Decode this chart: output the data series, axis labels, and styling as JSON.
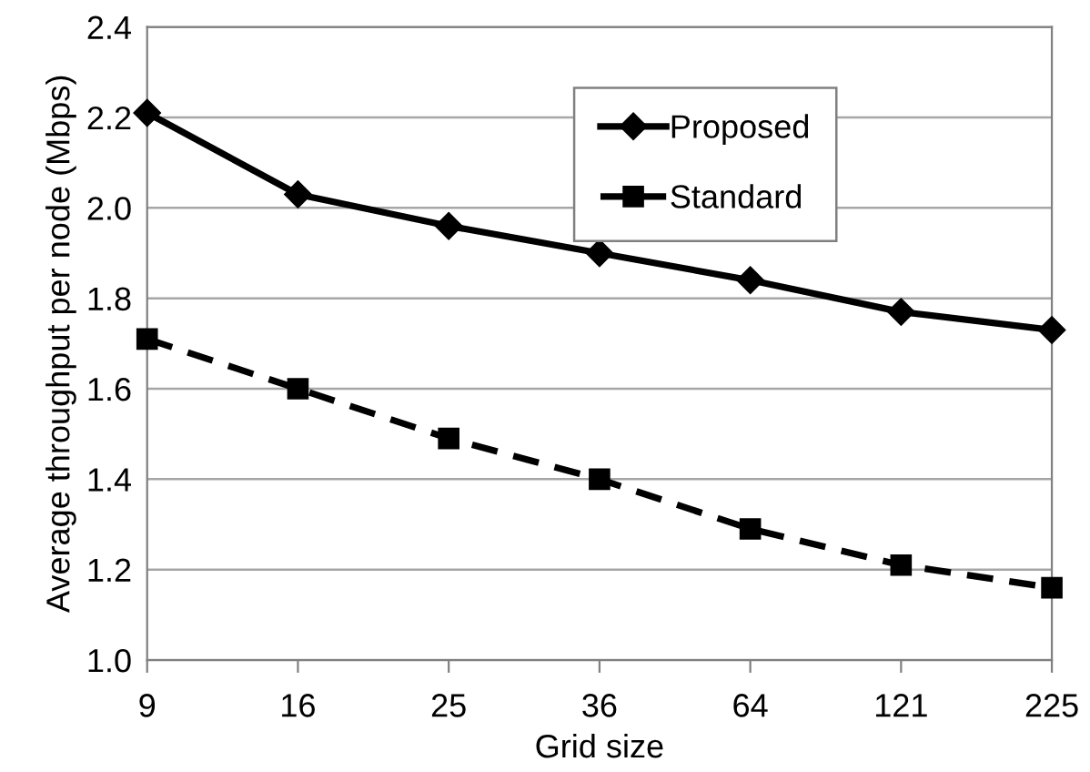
{
  "chart_data": {
    "type": "line",
    "xlabel": "Grid size",
    "ylabel": "Average throughput per node (Mbps)",
    "categories": [
      "9",
      "16",
      "25",
      "36",
      "64",
      "121",
      "225"
    ],
    "series": [
      {
        "name": "Proposed",
        "color": "#000000",
        "marker": "diamond",
        "line_style": "solid",
        "values": [
          2.21,
          2.03,
          1.96,
          1.9,
          1.84,
          1.77,
          1.73
        ]
      },
      {
        "name": "Standard",
        "color": "#000000",
        "marker": "square",
        "line_style": "dashed",
        "values": [
          1.71,
          1.6,
          1.49,
          1.4,
          1.29,
          1.21,
          1.16
        ]
      }
    ],
    "ylim": [
      1.0,
      2.4
    ],
    "yticks": [
      {
        "value": 1.0,
        "label": "1.0"
      },
      {
        "value": 1.2,
        "label": "1.2"
      },
      {
        "value": 1.4,
        "label": "1.4"
      },
      {
        "value": 1.6,
        "label": "1.6"
      },
      {
        "value": 1.8,
        "label": "1.8"
      },
      {
        "value": 2.0,
        "label": "2.0"
      },
      {
        "value": 2.2,
        "label": "2.2"
      },
      {
        "value": 2.4,
        "label": "2.4"
      }
    ],
    "grid": "y",
    "legend": "top right"
  }
}
